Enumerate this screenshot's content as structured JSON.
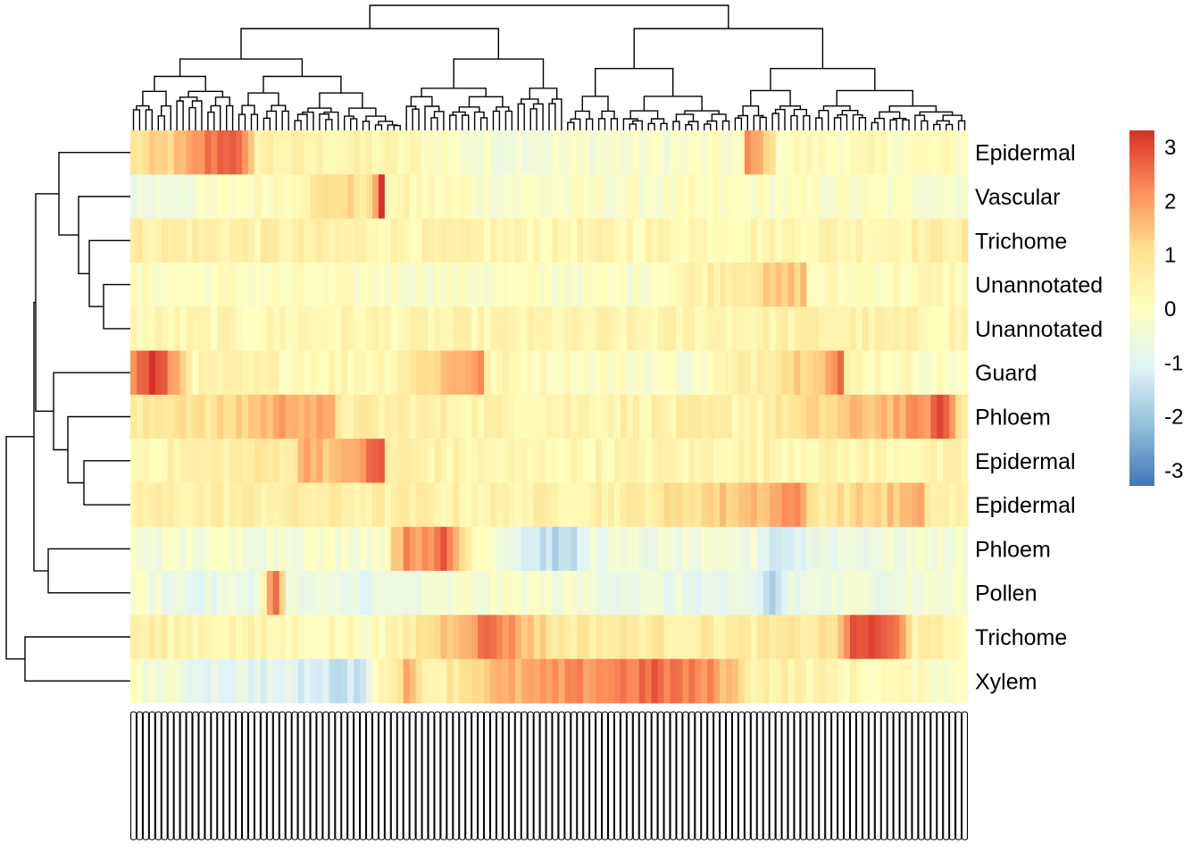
{
  "chart_data": {
    "type": "heatmap",
    "title": "",
    "xlabel": "",
    "ylabel": "",
    "rows": [
      "Epidermal",
      "Vascular",
      "Trichome",
      "Unannotated",
      "Unannotated",
      "Guard",
      "Phloem",
      "Epidermal",
      "Epidermal",
      "Phloem",
      "Pollen",
      "Trichome",
      "Xylem"
    ],
    "n_columns": 135,
    "column_label_note": "Gene identifier column labels are overprinted and illegible (rotated, e.g. 'AT1G...').",
    "color_scale": {
      "min": -3.3,
      "max": 3.3,
      "ticks": [
        3,
        2,
        1,
        0,
        -1,
        -2,
        -3
      ],
      "colors": [
        "#4575b4",
        "#91bfdb",
        "#e0f3f8",
        "#ffffbf",
        "#fee090",
        "#fc8d59",
        "#d73027"
      ]
    },
    "row_profiles": [
      [
        [
          0,
          0.8
        ],
        [
          8,
          1.4
        ],
        [
          12,
          2.4
        ],
        [
          16,
          3.0
        ],
        [
          20,
          0.6
        ],
        [
          26,
          0.4
        ],
        [
          40,
          0.3
        ],
        [
          50,
          0.0
        ],
        [
          56,
          -0.4
        ],
        [
          98,
          -0.2
        ],
        [
          99,
          2.0
        ],
        [
          102,
          1.5
        ],
        [
          104,
          0.1
        ],
        [
          134,
          0.0
        ]
      ],
      [
        [
          0,
          -0.6
        ],
        [
          10,
          -0.4
        ],
        [
          25,
          0.3
        ],
        [
          33,
          1.2
        ],
        [
          38,
          0.8
        ],
        [
          40,
          3.0
        ],
        [
          41,
          0.3
        ],
        [
          60,
          -0.2
        ],
        [
          100,
          -0.1
        ],
        [
          134,
          -0.2
        ]
      ],
      [
        [
          0,
          0.6
        ],
        [
          20,
          0.5
        ],
        [
          40,
          0.4
        ],
        [
          60,
          0.3
        ],
        [
          90,
          0.3
        ],
        [
          120,
          0.4
        ],
        [
          134,
          0.6
        ]
      ],
      [
        [
          0,
          0.0
        ],
        [
          40,
          -0.1
        ],
        [
          80,
          -0.2
        ],
        [
          108,
          1.5
        ],
        [
          109,
          0.0
        ],
        [
          134,
          0.2
        ]
      ],
      [
        [
          0,
          0.2
        ],
        [
          40,
          0.3
        ],
        [
          80,
          0.3
        ],
        [
          110,
          0.5
        ],
        [
          134,
          0.3
        ]
      ],
      [
        [
          0,
          2.2
        ],
        [
          3,
          3.2
        ],
        [
          7,
          1.8
        ],
        [
          10,
          0.3
        ],
        [
          40,
          0.3
        ],
        [
          56,
          2.2
        ],
        [
          57,
          0.3
        ],
        [
          90,
          -0.3
        ],
        [
          112,
          1.8
        ],
        [
          114,
          2.5
        ],
        [
          115,
          0.3
        ],
        [
          134,
          -0.1
        ]
      ],
      [
        [
          0,
          0.5
        ],
        [
          8,
          1.2
        ],
        [
          12,
          0.8
        ],
        [
          26,
          2.0
        ],
        [
          32,
          1.5
        ],
        [
          34,
          0.6
        ],
        [
          60,
          0.4
        ],
        [
          100,
          0.5
        ],
        [
          127,
          2.0
        ],
        [
          131,
          3.0
        ],
        [
          133,
          1.0
        ],
        [
          134,
          0.6
        ]
      ],
      [
        [
          0,
          0.3
        ],
        [
          26,
          0.8
        ],
        [
          28,
          2.0
        ],
        [
          33,
          1.3
        ],
        [
          40,
          2.8
        ],
        [
          41,
          0.6
        ],
        [
          60,
          0.2
        ],
        [
          100,
          0.4
        ],
        [
          134,
          0.3
        ]
      ],
      [
        [
          0,
          0.5
        ],
        [
          30,
          0.6
        ],
        [
          60,
          0.4
        ],
        [
          80,
          0.6
        ],
        [
          104,
          1.8
        ],
        [
          106,
          2.4
        ],
        [
          110,
          0.8
        ],
        [
          127,
          1.6
        ],
        [
          129,
          0.5
        ],
        [
          134,
          0.4
        ]
      ],
      [
        [
          0,
          -0.4
        ],
        [
          40,
          -0.2
        ],
        [
          44,
          2.4
        ],
        [
          48,
          1.8
        ],
        [
          50,
          2.9
        ],
        [
          54,
          0.6
        ],
        [
          64,
          -1.2
        ],
        [
          70,
          -1.8
        ],
        [
          74,
          -0.6
        ],
        [
          100,
          -0.6
        ],
        [
          104,
          -1.3
        ],
        [
          110,
          -0.7
        ],
        [
          134,
          -0.3
        ]
      ],
      [
        [
          0,
          -0.2
        ],
        [
          10,
          -0.9
        ],
        [
          20,
          -0.6
        ],
        [
          23,
          2.9
        ],
        [
          25,
          -0.7
        ],
        [
          40,
          -0.8
        ],
        [
          60,
          -0.2
        ],
        [
          100,
          -1.0
        ],
        [
          103,
          -1.8
        ],
        [
          106,
          -0.7
        ],
        [
          134,
          -0.3
        ]
      ],
      [
        [
          0,
          0.5
        ],
        [
          20,
          0.3
        ],
        [
          40,
          0.0
        ],
        [
          58,
          2.6
        ],
        [
          62,
          1.8
        ],
        [
          68,
          0.8
        ],
        [
          100,
          0.6
        ],
        [
          110,
          0.8
        ],
        [
          114,
          1.2
        ],
        [
          116,
          3.0
        ],
        [
          120,
          2.8
        ],
        [
          124,
          2.2
        ],
        [
          126,
          0.5
        ],
        [
          134,
          0.3
        ]
      ],
      [
        [
          0,
          -0.2
        ],
        [
          10,
          -0.8
        ],
        [
          24,
          -1.0
        ],
        [
          36,
          -1.5
        ],
        [
          38,
          -0.5
        ],
        [
          44,
          1.6
        ],
        [
          48,
          0.4
        ],
        [
          56,
          1.4
        ],
        [
          70,
          2.0
        ],
        [
          84,
          2.6
        ],
        [
          94,
          2.0
        ],
        [
          100,
          0.6
        ],
        [
          134,
          -0.2
        ]
      ]
    ]
  }
}
